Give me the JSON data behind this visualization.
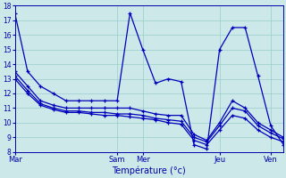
{
  "title": "Température (°c)",
  "bg_color": "#cce8e8",
  "line_color": "#0000bb",
  "grid_color": "#99cccc",
  "axis_color": "#0000aa",
  "x_tick_labels": [
    "Mar",
    "Sam",
    "Mer",
    "Jeu",
    "Ven"
  ],
  "x_tick_positions": [
    0,
    8,
    10,
    16,
    20
  ],
  "ylim": [
    8,
    18
  ],
  "yticks": [
    8,
    9,
    10,
    11,
    12,
    13,
    14,
    15,
    16,
    17,
    18
  ],
  "xlim": [
    0,
    21
  ],
  "series": [
    [
      17.5,
      13.5,
      12.5,
      12.0,
      11.5,
      11.5,
      11.5,
      11.5,
      11.5,
      17.5,
      15.0,
      12.7,
      13.0,
      12.8,
      8.5,
      8.2,
      15.0,
      16.5,
      16.5,
      13.2,
      9.8,
      8.5
    ],
    [
      13.5,
      12.5,
      11.5,
      11.2,
      11.0,
      11.0,
      11.0,
      11.0,
      11.0,
      11.0,
      10.8,
      10.6,
      10.5,
      10.5,
      9.2,
      8.8,
      10.0,
      11.5,
      11.0,
      10.0,
      9.5,
      9.0
    ],
    [
      13.2,
      12.2,
      11.3,
      11.0,
      10.8,
      10.8,
      10.7,
      10.7,
      10.6,
      10.6,
      10.5,
      10.3,
      10.2,
      10.1,
      9.0,
      8.7,
      9.8,
      11.0,
      10.8,
      9.8,
      9.3,
      8.9
    ],
    [
      13.0,
      12.0,
      11.2,
      10.9,
      10.7,
      10.7,
      10.6,
      10.5,
      10.5,
      10.4,
      10.3,
      10.2,
      10.0,
      9.9,
      8.8,
      8.5,
      9.5,
      10.5,
      10.3,
      9.5,
      9.0,
      8.7
    ]
  ]
}
